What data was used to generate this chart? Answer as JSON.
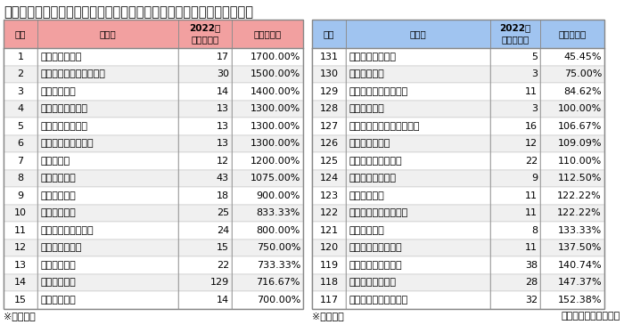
{
  "title": "新陳代謝率（倒産、休廃業・解散に対する新設法人の割合）ランキング",
  "left_table": {
    "headers": [
      "順位",
      "エリア",
      "2022年\n新設法人数",
      "新陳代謝率"
    ],
    "rows": [
      [
        1,
        "東京都国分寺市",
        17,
        "1700.00%"
      ],
      [
        2,
        "埼玉県さいたま市大宮区",
        30,
        "1500.00%"
      ],
      [
        3,
        "千葉県成田市",
        14,
        "1400.00%"
      ],
      [
        4,
        "千葉県千葉市緑区",
        13,
        "1300.00%"
      ],
      [
        5,
        "神奈川県海老名市",
        13,
        "1300.00%"
      ],
      [
        6,
        "千葉県千葉市若葉区",
        13,
        "1300.00%"
      ],
      [
        7,
        "埼玉県蕨市",
        12,
        "1200.00%"
      ],
      [
        8,
        "東京都荒川区",
        43,
        "1075.00%"
      ],
      [
        9,
        "千葉県流山市",
        18,
        "900.00%"
      ],
      [
        10,
        "千葉県市原市",
        25,
        "833.33%"
      ],
      [
        11,
        "千葉県千葉市稲毛区",
        24,
        "800.00%"
      ],
      [
        12,
        "東京都東村山市",
        15,
        "750.00%"
      ],
      [
        13,
        "千葉県浦安市",
        22,
        "733.33%"
      ],
      [
        14,
        "東京都目黒区",
        129,
        "716.67%"
      ],
      [
        15,
        "埼玉県八潮市",
        14,
        "700.00%"
      ]
    ]
  },
  "right_table": {
    "headers": [
      "順位",
      "エリア",
      "2022年\n新設法人数",
      "新陳代謝率"
    ],
    "rows": [
      [
        131,
        "東京都東久留米市",
        5,
        "45.45%"
      ],
      [
        130,
        "東京都青梅市",
        3,
        "75.00%"
      ],
      [
        129,
        "神奈川県横浜市港南区",
        11,
        "84.62%"
      ],
      [
        128,
        "埼玉県狭山市",
        3,
        "100.00%"
      ],
      [
        127,
        "神奈川県横浜市保土ヶ谷区",
        16,
        "106.67%"
      ],
      [
        126,
        "東京都小金井市",
        12,
        "109.09%"
      ],
      [
        125,
        "神奈川県横浜市南区",
        22,
        "110.00%"
      ],
      [
        124,
        "神奈川県小田原市",
        9,
        "112.50%"
      ],
      [
        123,
        "東京都多摩市",
        11,
        "122.22%"
      ],
      [
        122,
        "神奈川県横浜市金沢区",
        11,
        "122.22%"
      ],
      [
        121,
        "千葉県野田市",
        8,
        "133.33%"
      ],
      [
        120,
        "神奈川県横浜市緑区",
        11,
        "137.50%"
      ],
      [
        119,
        "神奈川県横浜市西区",
        38,
        "140.74%"
      ],
      [
        118,
        "神奈川県横須賀市",
        28,
        "147.37%"
      ],
      [
        117,
        "神奈川県川崎市川崎区",
        32,
        "152.38%"
      ]
    ]
  },
  "footnote_left": "※比率降順",
  "footnote_right": "※比率昇順",
  "source": "東京商工リサーチ調べ",
  "header_left_bg": "#f2a0a0",
  "header_right_bg": "#a0c4f0",
  "border_color": "#aaaaaa",
  "title_fontsize": 10.5,
  "table_fontsize": 8.0
}
